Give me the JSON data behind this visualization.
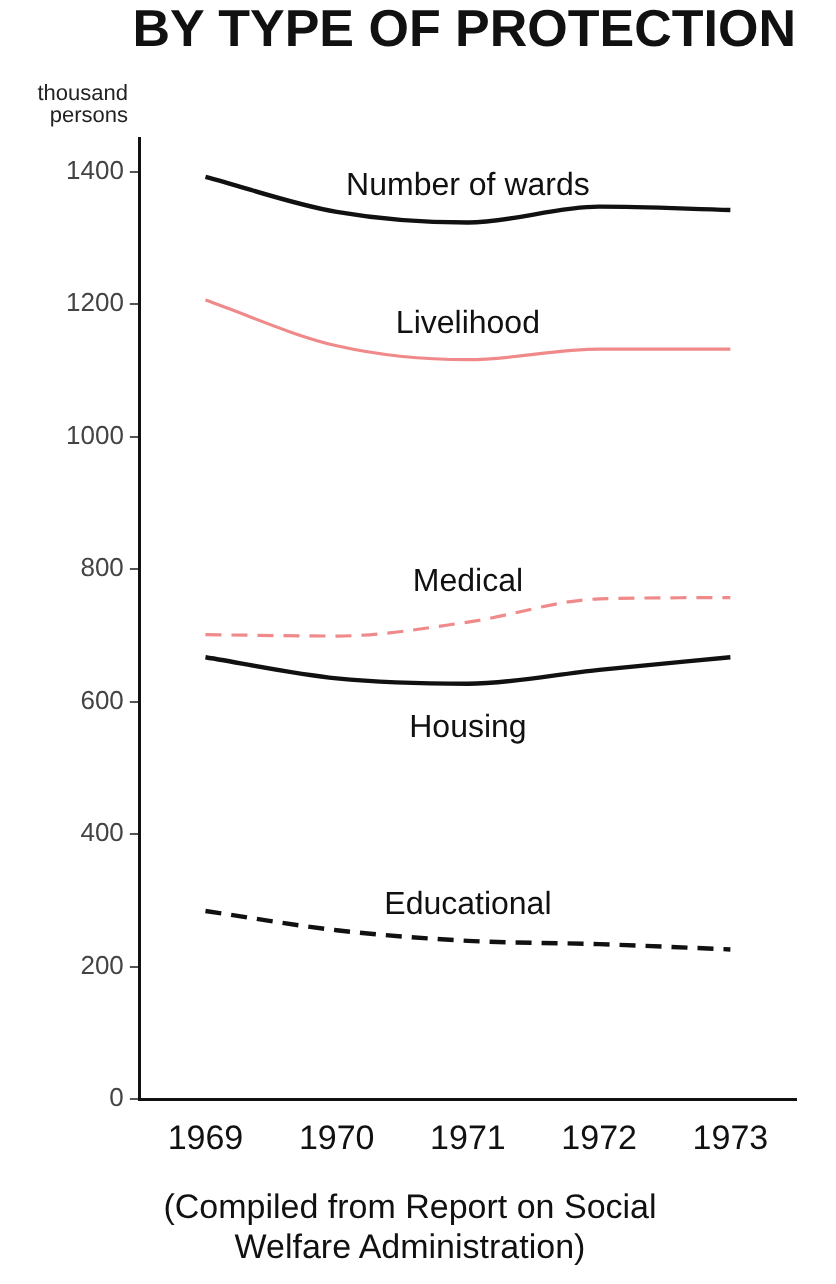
{
  "chart_data": {
    "type": "line",
    "title": "BY TYPE OF PROTECTION",
    "ylabel": "thousand persons",
    "categories": [
      "1969",
      "1970",
      "1971",
      "1972",
      "1973"
    ],
    "series": [
      {
        "name": "Number of wards",
        "color": "#111111",
        "line_style": "solid",
        "values": [
          1392,
          1339,
          1323,
          1347,
          1342
        ]
      },
      {
        "name": "Livelihood",
        "color": "#f08a8a",
        "line_style": "solid",
        "values": [
          1206,
          1137,
          1116,
          1132,
          1132
        ]
      },
      {
        "name": "Medical",
        "color": "#f08a8a",
        "line_style": "dashed",
        "values": [
          701,
          699,
          720,
          755,
          757
        ]
      },
      {
        "name": "Housing",
        "color": "#111111",
        "line_style": "solid",
        "values": [
          667,
          635,
          627,
          648,
          667
        ]
      },
      {
        "name": "Educational",
        "color": "#111111",
        "line_style": "dashed",
        "values": [
          284,
          255,
          239,
          234,
          226
        ]
      }
    ],
    "ylim": [
      0,
      1450
    ],
    "yticks": [
      0,
      200,
      400,
      600,
      800,
      1000,
      1200,
      1400
    ],
    "grid": false,
    "legend": false,
    "marker": "none",
    "annotations": [
      "(Compiled from Report on Social Welfare Administration)"
    ]
  }
}
